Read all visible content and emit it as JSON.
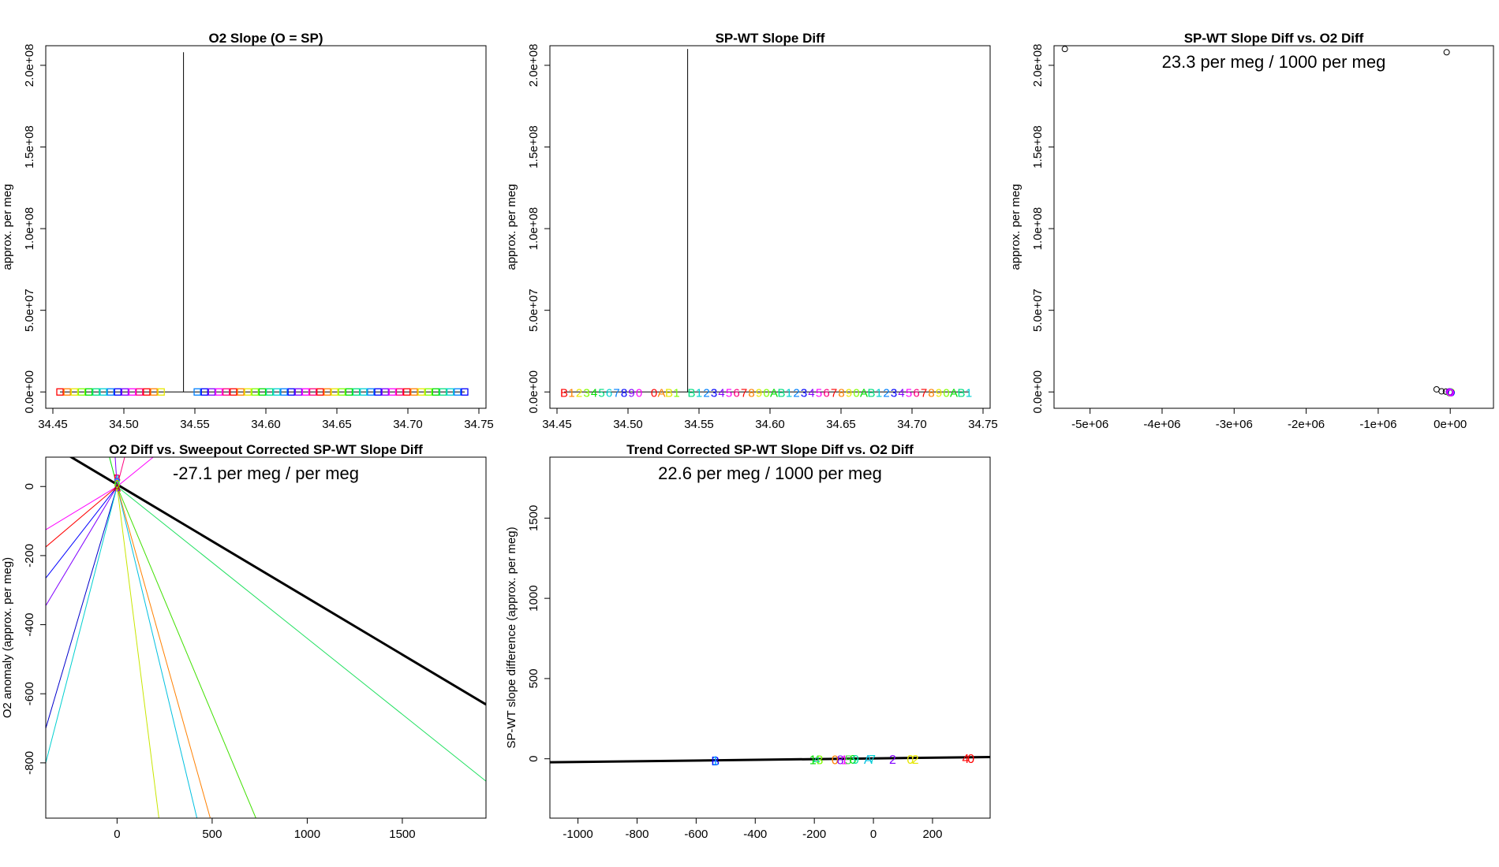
{
  "chart_data": [
    {
      "id": "p1",
      "type": "scatter",
      "title": "O2 Slope (O = SP)",
      "ylabel": "approx. per meg",
      "xlabel": "",
      "xlim": [
        34.445,
        34.755
      ],
      "ylim": [
        -10000000.0,
        212000000.0
      ],
      "xticks": [
        "34.45",
        "34.50",
        "34.55",
        "34.60",
        "34.65",
        "34.70",
        "34.75"
      ],
      "xtick_values": [
        34.45,
        34.5,
        34.55,
        34.6,
        34.65,
        34.7,
        34.75
      ],
      "yticks": [
        "0.0e+00",
        "5.0e+07",
        "1.0e+08",
        "1.5e+08",
        "2.0e+08"
      ],
      "ytick_values": [
        0,
        50000000.0,
        100000000.0,
        150000000.0,
        200000000.0
      ],
      "spike": {
        "x": 34.542,
        "y": 208000000.0
      },
      "marker": "□",
      "points": {
        "x_start": 34.455,
        "x_end": 34.74,
        "count": 57,
        "gap_after": 34.53,
        "gap_until": 34.548,
        "y": 0
      },
      "palette": [
        "#ff0000",
        "#ff8000",
        "#e6e600",
        "#80ff00",
        "#00e000",
        "#00e080",
        "#00d0d0",
        "#0080ff",
        "#0000ff",
        "#8000ff",
        "#ff00ff",
        "#ff0080"
      ]
    },
    {
      "id": "p2",
      "type": "scatter",
      "title": "SP-WT Slope Diff",
      "ylabel": "approx. per meg",
      "xlabel": "",
      "xlim": [
        34.445,
        34.755
      ],
      "ylim": [
        -10000000.0,
        212000000.0
      ],
      "xticks": [
        "34.45",
        "34.50",
        "34.55",
        "34.60",
        "34.65",
        "34.70",
        "34.75"
      ],
      "xtick_values": [
        34.45,
        34.5,
        34.55,
        34.6,
        34.65,
        34.7,
        34.75
      ],
      "yticks": [
        "0.0e+00",
        "5.0e+07",
        "1.0e+08",
        "1.5e+08",
        "2.0e+08"
      ],
      "ytick_values": [
        0,
        50000000.0,
        100000000.0,
        150000000.0,
        200000000.0
      ],
      "spike": {
        "x": 34.542,
        "y": 210000000.0
      },
      "point_labels": [
        "B",
        "1",
        "2",
        "3",
        "4",
        "5",
        "6",
        "7",
        "8",
        "9",
        "0",
        "",
        "0",
        "A",
        "B",
        "1",
        "",
        "B",
        "1",
        "2",
        "3",
        "4",
        "5",
        "6",
        "7",
        "8",
        "9",
        "0",
        "A",
        "B",
        "1",
        "2",
        "3",
        "4",
        "5",
        "6",
        "7",
        "8",
        "9",
        "0",
        "A",
        "B",
        "1",
        "2",
        "3",
        "4",
        "5",
        "6",
        "7",
        "8",
        "9",
        "0",
        "A",
        "B",
        "1"
      ],
      "label_x_start": 34.455,
      "label_x_end": 34.74,
      "palette": [
        "#ff0000",
        "#ff8000",
        "#e6e600",
        "#80ff00",
        "#00e000",
        "#00e080",
        "#00d0d0",
        "#0080ff",
        "#0000ff",
        "#8000ff",
        "#ff00ff",
        "#ff0080"
      ]
    },
    {
      "id": "p3",
      "type": "scatter",
      "title": "SP-WT Slope Diff vs. O2 Diff",
      "ylabel": "approx. per meg",
      "xlabel": "",
      "annotation": "23.3 per meg / 1000 per meg",
      "xlim": [
        -5500000.0,
        600000.0
      ],
      "ylim": [
        -10000000.0,
        212000000.0
      ],
      "xticks": [
        "-5e+06",
        "-4e+06",
        "-3e+06",
        "-2e+06",
        "-1e+06",
        "0e+00"
      ],
      "xtick_values": [
        -5000000.0,
        -4000000.0,
        -3000000.0,
        -2000000.0,
        -1000000.0,
        0
      ],
      "yticks": [
        "0.0e+00",
        "5.0e+07",
        "1.0e+08",
        "1.5e+08",
        "2.0e+08"
      ],
      "ytick_values": [
        0,
        50000000.0,
        100000000.0,
        150000000.0,
        200000000.0
      ],
      "open_points": [
        {
          "x": -5350000.0,
          "y": 210000000.0
        },
        {
          "x": -50000.0,
          "y": 208000000.0
        },
        {
          "x": -190000.0,
          "y": 1600000.0
        },
        {
          "x": -120000.0,
          "y": 400000.0
        },
        {
          "x": -60000.0,
          "y": 200000.0
        }
      ],
      "cluster": {
        "x": 0,
        "y": 0
      }
    },
    {
      "id": "p4",
      "type": "line",
      "title": "O2 Diff vs. Sweepout Corrected SP-WT Slope Diff",
      "ylabel": "O2 anomaly (approx. per meg)",
      "xlabel": "",
      "annotation": "-27.1 per meg / per meg",
      "xlim": [
        -375,
        1940
      ],
      "ylim": [
        -960,
        85
      ],
      "xticks": [
        "0",
        "500",
        "1000",
        "1500"
      ],
      "xtick_values": [
        0,
        500,
        1000,
        1500
      ],
      "yticks": [
        "-800",
        "-600",
        "-400",
        "-200",
        "0"
      ],
      "ytick_values": [
        -800,
        -600,
        -400,
        -200,
        0
      ],
      "fit_line": {
        "x1": -375,
        "y1": 129,
        "x2": 1940,
        "y2": -631
      },
      "rays": [
        {
          "x": -375,
          "y": -125,
          "color": "#ff00ff"
        },
        {
          "x": -375,
          "y": -175,
          "color": "#ff0000"
        },
        {
          "x": -375,
          "y": -265,
          "color": "#0000ff"
        },
        {
          "x": -375,
          "y": -345,
          "color": "#8000ff"
        },
        {
          "x": -375,
          "y": -700,
          "color": "#0000cc"
        },
        {
          "x": -375,
          "y": -800,
          "color": "#00d0d0"
        },
        {
          "x": 220,
          "y": -960,
          "color": "#c8e600"
        },
        {
          "x": 420,
          "y": -960,
          "color": "#00c0e0"
        },
        {
          "x": 490,
          "y": -960,
          "color": "#ff8000"
        },
        {
          "x": 730,
          "y": -960,
          "color": "#40e000"
        },
        {
          "x": 1940,
          "y": -853,
          "color": "#20e060"
        }
      ],
      "upper_rays": [
        {
          "x": 190,
          "y": 85,
          "color": "#ff00ff"
        },
        {
          "x": -10,
          "y": 85,
          "color": "#8000ff"
        },
        {
          "x": 40,
          "y": 85,
          "color": "#ff0080"
        },
        {
          "x": -40,
          "y": 85,
          "color": "#00e000"
        }
      ],
      "hub_labels": [
        "B",
        "1",
        "2",
        "3",
        "4",
        "5",
        "6",
        "7",
        "8",
        "9",
        "0",
        "A"
      ]
    },
    {
      "id": "p5",
      "type": "scatter",
      "title": "Trend Corrected SP-WT Slope Diff vs. O2 Diff",
      "ylabel": "SP-WT slope difference (approx. per meg)",
      "xlabel": "",
      "annotation": "22.6 per meg / 1000 per meg",
      "xlim": [
        -1095,
        395
      ],
      "ylim": [
        -370,
        1880
      ],
      "xticks": [
        "-1000",
        "-800",
        "-600",
        "-400",
        "-200",
        "0",
        "200"
      ],
      "xtick_values": [
        -1000,
        -800,
        -600,
        -400,
        -200,
        0,
        200
      ],
      "yticks": [
        "0",
        "500",
        "1000",
        "1500"
      ],
      "ytick_values": [
        0,
        500,
        1000,
        1500
      ],
      "fit_line": {
        "x1": -1095,
        "y1": -22,
        "x2": 395,
        "y2": 11
      },
      "points": [
        {
          "label": "B",
          "x": -535,
          "y": -12,
          "color": "#0000ff"
        },
        {
          "label": "1",
          "x": -535,
          "y": -8,
          "color": "#00a0ff"
        },
        {
          "label": "1",
          "x": -205,
          "y": -3,
          "color": "#00e000"
        },
        {
          "label": "4",
          "x": -192,
          "y": -3,
          "color": "#00e080"
        },
        {
          "label": "3",
          "x": -182,
          "y": -3,
          "color": "#80ff00"
        },
        {
          "label": "0",
          "x": -130,
          "y": -3,
          "color": "#ff8000"
        },
        {
          "label": "8",
          "x": -112,
          "y": -3,
          "color": "#8000ff"
        },
        {
          "label": "1",
          "x": -98,
          "y": -3,
          "color": "#ff00ff"
        },
        {
          "label": "5",
          "x": -85,
          "y": -3,
          "color": "#40e040"
        },
        {
          "label": "6",
          "x": -70,
          "y": -1,
          "color": "#00e000"
        },
        {
          "label": "9",
          "x": -60,
          "y": -2,
          "color": "#00e0a0"
        },
        {
          "label": "A",
          "x": -18,
          "y": -2,
          "color": "#00c0e0"
        },
        {
          "label": "7",
          "x": -4,
          "y": -1,
          "color": "#00d0d0"
        },
        {
          "label": "2",
          "x": 65,
          "y": -2,
          "color": "#8000ff"
        },
        {
          "label": "0",
          "x": 125,
          "y": -1,
          "color": "#e6e600"
        },
        {
          "label": "2",
          "x": 142,
          "y": -1,
          "color": "#e6e600"
        },
        {
          "label": "4",
          "x": 312,
          "y": 3,
          "color": "#ff0000"
        },
        {
          "label": "0",
          "x": 330,
          "y": 3,
          "color": "#ff0000"
        }
      ]
    }
  ]
}
